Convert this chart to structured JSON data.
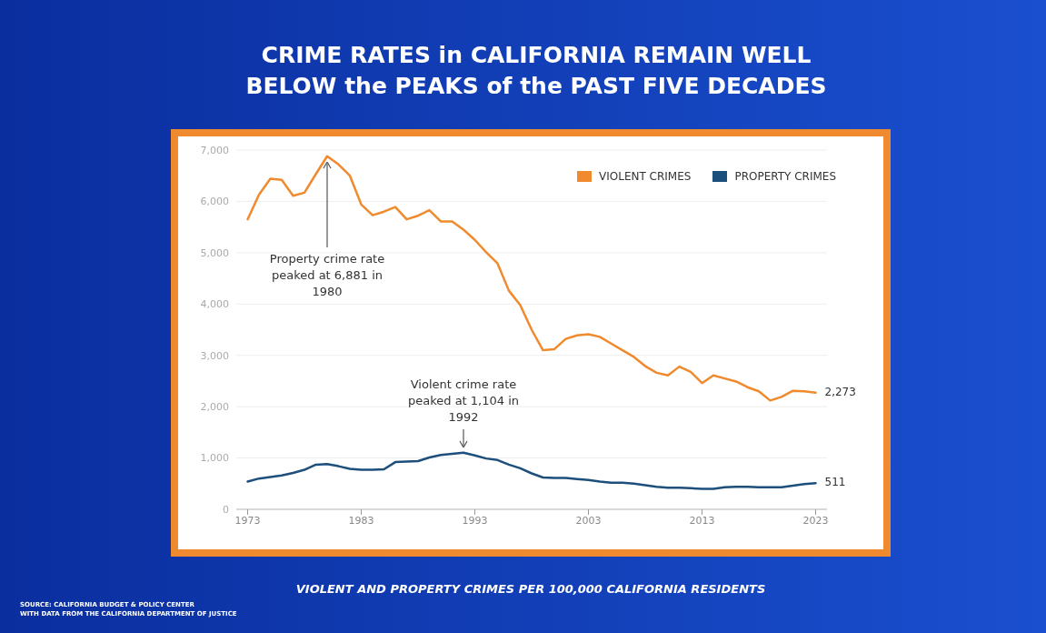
{
  "chart_data": {
    "type": "line",
    "title": "CRIME RATES in CALIFORNIA REMAIN WELL BELOW the PEAKS of the PAST FIVE DECADES",
    "xlabel": "VIOLENT AND PROPERTY CRIMES PER 100,000 CALIFORNIA RESIDENTS",
    "x": [
      1973,
      1974,
      1975,
      1976,
      1977,
      1978,
      1979,
      1980,
      1981,
      1982,
      1983,
      1984,
      1985,
      1986,
      1987,
      1988,
      1989,
      1990,
      1991,
      1992,
      1993,
      1994,
      1995,
      1996,
      1997,
      1998,
      1999,
      2000,
      2001,
      2002,
      2003,
      2004,
      2005,
      2006,
      2007,
      2008,
      2009,
      2010,
      2011,
      2012,
      2013,
      2014,
      2015,
      2016,
      2017,
      2018,
      2019,
      2020,
      2021,
      2022,
      2023
    ],
    "series": [
      {
        "name": "VIOLENT CRIMES",
        "color": "#ef8a2e",
        "values": [
          5650,
          6130,
          6440,
          6420,
          6110,
          6170,
          6530,
          6881,
          6720,
          6500,
          5940,
          5730,
          5800,
          5890,
          5650,
          5720,
          5830,
          5610,
          5610,
          5450,
          5250,
          5010,
          4790,
          4260,
          3980,
          3500,
          3100,
          3120,
          3320,
          3390,
          3410,
          3360,
          3230,
          3100,
          2970,
          2790,
          2660,
          2610,
          2780,
          2680,
          2460,
          2610,
          2550,
          2490,
          2380,
          2300,
          2120,
          2190,
          2310,
          2300,
          2273
        ]
      },
      {
        "name": "PROPERTY CRIMES",
        "color": "#1d4f7c",
        "values": [
          540,
          600,
          630,
          660,
          710,
          770,
          870,
          880,
          840,
          790,
          770,
          770,
          780,
          920,
          930,
          940,
          1010,
          1060,
          1080,
          1104,
          1050,
          990,
          960,
          870,
          800,
          700,
          620,
          610,
          610,
          590,
          570,
          540,
          520,
          520,
          500,
          470,
          440,
          420,
          420,
          410,
          400,
          400,
          430,
          440,
          440,
          430,
          430,
          430,
          460,
          490,
          511
        ]
      }
    ],
    "xlim": [
      1972,
      2024
    ],
    "xticks": [
      1973,
      1983,
      1993,
      2003,
      2013,
      2023
    ],
    "ylim": [
      0,
      7000
    ],
    "yticks": [
      0,
      {
        "value": 1000,
        "label": "1,000"
      },
      {
        "value": 2000,
        "label": "2,000"
      },
      {
        "value": 3000,
        "label": "3,000"
      },
      {
        "value": 4000,
        "label": "4,000"
      },
      {
        "value": 5000,
        "label": "5,000"
      },
      {
        "value": 6000,
        "label": "6,000"
      },
      {
        "value": 7000,
        "label": "7,000"
      }
    ],
    "grid": "y",
    "legend": "top right",
    "marker": "none",
    "line_style": "solid",
    "annotations": [
      {
        "text": "Property crime rate peaked at 6,881 in 1980",
        "x": 1980,
        "y": 6881
      },
      {
        "text": "Violent crime rate peaked at 1,104 in 1992",
        "x": 1992,
        "y": 1104
      },
      {
        "text": "2,273",
        "x": 2023,
        "y": 2273
      },
      {
        "text": "511",
        "x": 2023,
        "y": 511
      },
      "SOURCE: CALIFORNIA BUDGET & POLICY CENTER",
      "WITH DATA FROM THE CALIFORNIA DEPARTMENT OF JUSTICE"
    ]
  }
}
